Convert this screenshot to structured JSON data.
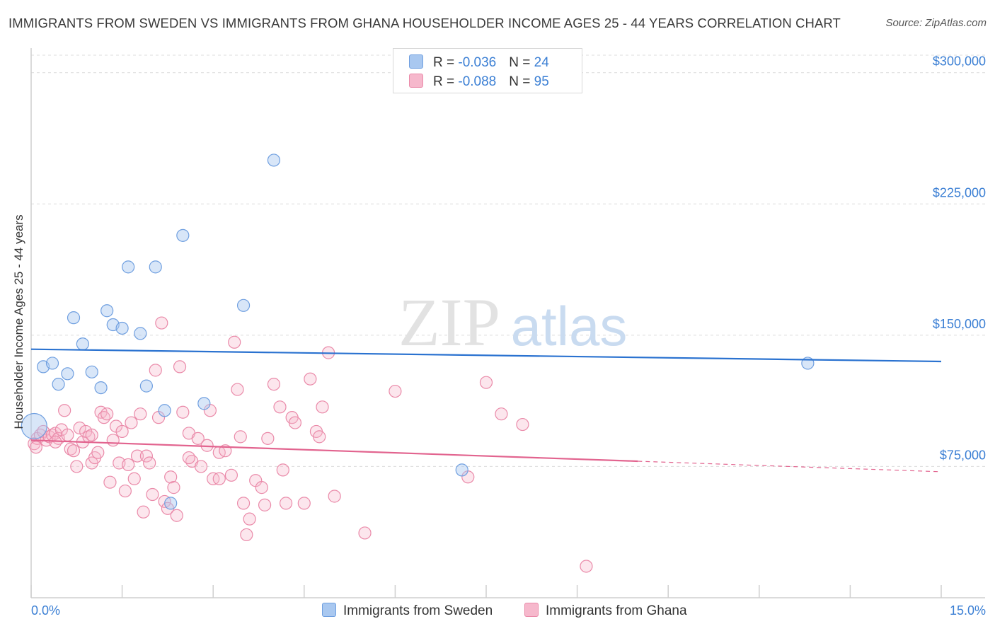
{
  "header": {
    "title": "IMMIGRANTS FROM SWEDEN VS IMMIGRANTS FROM GHANA HOUSEHOLDER INCOME AGES 25 - 44 YEARS CORRELATION CHART",
    "source": "Source: ZipAtlas.com"
  },
  "legend": {
    "sweden": {
      "r_label": "R = ",
      "r_value": "-0.036",
      "n_label": "N = ",
      "n_value": "24"
    },
    "ghana": {
      "r_label": "R = ",
      "r_value": "-0.088",
      "n_label": "N = ",
      "n_value": "95"
    }
  },
  "watermark": {
    "zip": "ZIP",
    "atlas": "atlas"
  },
  "colors": {
    "sweden_fill": "#a9c8f0",
    "sweden_stroke": "#6f9fe0",
    "sweden_line": "#2a72d0",
    "ghana_fill": "#f6b8cc",
    "ghana_stroke": "#ea8aa9",
    "ghana_line": "#e2648f",
    "axis_text": "#3b7fd4",
    "grid": "#dcdcdc"
  },
  "chart_data": {
    "type": "scatter",
    "title": "IMMIGRANTS FROM SWEDEN VS IMMIGRANTS FROM GHANA HOUSEHOLDER INCOME AGES 25 - 44 YEARS CORRELATION CHART",
    "xlabel": "",
    "ylabel": "Householder Income Ages 25 - 44 years",
    "xlim": [
      0,
      15
    ],
    "ylim": [
      0,
      310000
    ],
    "x_tick_labels": [
      "0.0%",
      "15.0%"
    ],
    "y_ticks": [
      75000,
      150000,
      225000,
      300000
    ],
    "y_tick_labels": [
      "$75,000",
      "$150,000",
      "$225,000",
      "$300,000"
    ],
    "grid": true,
    "legend_position": "top-center",
    "series": [
      {
        "name": "Immigrants from Sweden",
        "trend": {
          "x": [
            0,
            15
          ],
          "y": [
            142000,
            135000
          ],
          "dashed_from": null
        },
        "points": [
          [
            0.05,
            98000
          ],
          [
            0.2,
            132000
          ],
          [
            0.35,
            134000
          ],
          [
            0.45,
            122000
          ],
          [
            0.6,
            128000
          ],
          [
            0.7,
            160000
          ],
          [
            0.85,
            145000
          ],
          [
            1.0,
            129000
          ],
          [
            1.15,
            120000
          ],
          [
            1.25,
            164000
          ],
          [
            1.35,
            156000
          ],
          [
            1.5,
            154000
          ],
          [
            1.6,
            189000
          ],
          [
            1.8,
            151000
          ],
          [
            1.9,
            121000
          ],
          [
            2.05,
            189000
          ],
          [
            2.2,
            107000
          ],
          [
            2.3,
            54000
          ],
          [
            2.5,
            207000
          ],
          [
            2.85,
            111000
          ],
          [
            3.5,
            167000
          ],
          [
            4.0,
            250000
          ],
          [
            7.1,
            73000
          ],
          [
            12.8,
            134000
          ]
        ]
      },
      {
        "name": "Immigrants from Ghana",
        "trend": {
          "x": [
            0,
            15
          ],
          "y": [
            90000,
            72000
          ],
          "dashed_from": 10.0
        },
        "points": [
          [
            0.05,
            88000
          ],
          [
            0.1,
            91000
          ],
          [
            0.15,
            93000
          ],
          [
            0.2,
            95000
          ],
          [
            0.25,
            90000
          ],
          [
            0.3,
            92000
          ],
          [
            0.35,
            93000
          ],
          [
            0.4,
            94000
          ],
          [
            0.45,
            91000
          ],
          [
            0.5,
            96000
          ],
          [
            0.55,
            107000
          ],
          [
            0.6,
            93000
          ],
          [
            0.65,
            85000
          ],
          [
            0.7,
            84000
          ],
          [
            0.75,
            75000
          ],
          [
            0.8,
            97000
          ],
          [
            0.85,
            89000
          ],
          [
            0.9,
            95000
          ],
          [
            0.95,
            92000
          ],
          [
            1.0,
            77000
          ],
          [
            1.05,
            80000
          ],
          [
            1.1,
            83000
          ],
          [
            1.15,
            106000
          ],
          [
            1.2,
            103000
          ],
          [
            1.25,
            105000
          ],
          [
            1.3,
            66000
          ],
          [
            1.35,
            90000
          ],
          [
            1.4,
            98000
          ],
          [
            1.45,
            77000
          ],
          [
            1.5,
            95000
          ],
          [
            1.55,
            61000
          ],
          [
            1.6,
            76000
          ],
          [
            1.65,
            100000
          ],
          [
            1.7,
            68000
          ],
          [
            1.75,
            81000
          ],
          [
            1.8,
            105000
          ],
          [
            1.85,
            49000
          ],
          [
            1.9,
            81000
          ],
          [
            1.95,
            77000
          ],
          [
            2.0,
            59000
          ],
          [
            2.05,
            130000
          ],
          [
            2.1,
            103000
          ],
          [
            2.15,
            157000
          ],
          [
            2.2,
            55000
          ],
          [
            2.25,
            51000
          ],
          [
            2.3,
            69000
          ],
          [
            2.35,
            63000
          ],
          [
            2.4,
            47000
          ],
          [
            2.45,
            132000
          ],
          [
            2.5,
            106000
          ],
          [
            2.6,
            94000
          ],
          [
            2.65,
            78000
          ],
          [
            2.75,
            91000
          ],
          [
            2.8,
            75000
          ],
          [
            2.9,
            87000
          ],
          [
            2.95,
            107000
          ],
          [
            3.0,
            68000
          ],
          [
            3.1,
            83000
          ],
          [
            3.2,
            84000
          ],
          [
            3.3,
            70000
          ],
          [
            3.35,
            146000
          ],
          [
            3.4,
            119000
          ],
          [
            3.45,
            92000
          ],
          [
            3.5,
            54000
          ],
          [
            3.55,
            36000
          ],
          [
            3.6,
            45000
          ],
          [
            3.7,
            67000
          ],
          [
            3.8,
            63000
          ],
          [
            3.85,
            53000
          ],
          [
            3.9,
            91000
          ],
          [
            4.0,
            122000
          ],
          [
            4.1,
            109000
          ],
          [
            4.15,
            73000
          ],
          [
            4.2,
            54000
          ],
          [
            4.3,
            103000
          ],
          [
            4.35,
            100000
          ],
          [
            4.5,
            54000
          ],
          [
            4.6,
            125000
          ],
          [
            4.7,
            95000
          ],
          [
            4.75,
            92000
          ],
          [
            4.8,
            109000
          ],
          [
            4.9,
            140000
          ],
          [
            5.0,
            58000
          ],
          [
            5.5,
            37000
          ],
          [
            6.0,
            118000
          ],
          [
            7.2,
            69000
          ],
          [
            7.5,
            123000
          ],
          [
            7.75,
            105000
          ],
          [
            8.1,
            99000
          ],
          [
            9.15,
            18000
          ],
          [
            0.08,
            86000
          ],
          [
            0.4,
            89000
          ],
          [
            1.0,
            93000
          ],
          [
            2.6,
            80000
          ],
          [
            3.1,
            68000
          ]
        ]
      }
    ]
  },
  "bottom_legend": {
    "sweden_label": "Immigrants from Sweden",
    "ghana_label": "Immigrants from Ghana"
  }
}
